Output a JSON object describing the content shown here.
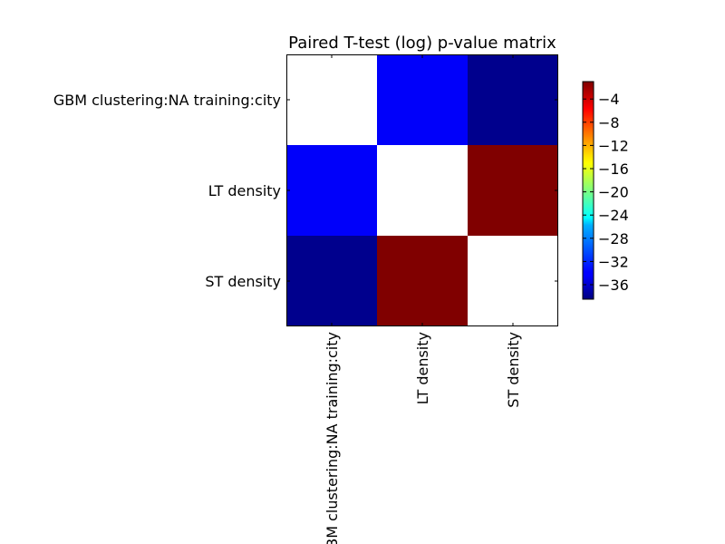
{
  "chart_data": {
    "type": "heatmap",
    "title": "Paired T-test (log) p-value matrix",
    "row_labels": [
      "GBM clustering:NA training:city",
      "LT density",
      "ST density"
    ],
    "col_labels": [
      "GBM clustering:NA training:city",
      "LT density",
      "ST density"
    ],
    "values": [
      [
        null,
        -34,
        -38
      ],
      [
        -34,
        null,
        -1
      ],
      [
        -38,
        -1,
        null
      ]
    ],
    "colormap": "jet",
    "missing_color": "#ffffff",
    "colorbar": {
      "range": [
        -38.5,
        -1
      ],
      "ticks": [
        -4,
        -8,
        -12,
        -16,
        -20,
        -24,
        -28,
        -32,
        -36
      ],
      "tick_labels": [
        "−4",
        "−8",
        "−12",
        "−16",
        "−20",
        "−24",
        "−28",
        "−32",
        "−36"
      ]
    }
  }
}
